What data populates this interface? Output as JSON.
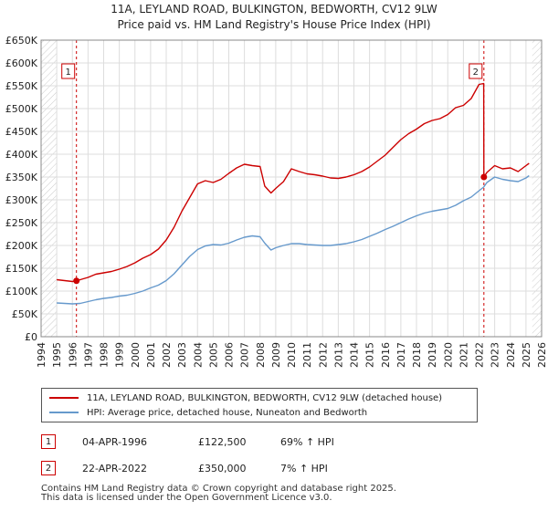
{
  "header": {
    "title_line1": "11A, LEYLAND ROAD, BULKINGTON, BEDWORTH, CV12 9LW",
    "title_line2": "Price paid vs. HM Land Registry's House Price Index (HPI)"
  },
  "colors": {
    "property_line": "#cc0000",
    "hpi_line": "#6699cc",
    "future_hatch": "#cccccc",
    "grid": "#dddddd",
    "marker": "#cc0000"
  },
  "legend": {
    "property_label": "11A, LEYLAND ROAD, BULKINGTON, BEDWORTH, CV12 9LW (detached house)",
    "hpi_label": "HPI: Average price, detached house, Nuneaton and Bedworth"
  },
  "transactions": [
    {
      "badge": "1",
      "date": "04-APR-1996",
      "price": "£122,500",
      "hpi_change": "69% ↑ HPI"
    },
    {
      "badge": "2",
      "date": "22-APR-2022",
      "price": "£350,000",
      "hpi_change": "7% ↑ HPI"
    }
  ],
  "footer": {
    "line1": "Contains HM Land Registry data © Crown copyright and database right 2025.",
    "line2": "This data is licensed under the Open Government Licence v3.0."
  },
  "chart_data": {
    "type": "line",
    "title": "11A, LEYLAND ROAD, BULKINGTON, BEDWORTH, CV12 9LW",
    "subtitle": "Price paid vs. HM Land Registry's House Price Index (HPI)",
    "xlabel": "",
    "ylabel": "",
    "xlim": [
      1994,
      2026
    ],
    "ylim": [
      0,
      650000
    ],
    "grid": true,
    "legend_position": "bottom",
    "x_ticks": [
      1994,
      1995,
      1996,
      1997,
      1998,
      1999,
      2000,
      2001,
      2002,
      2003,
      2004,
      2005,
      2006,
      2007,
      2008,
      2009,
      2010,
      2011,
      2012,
      2013,
      2014,
      2015,
      2016,
      2017,
      2018,
      2019,
      2020,
      2021,
      2022,
      2023,
      2024,
      2025,
      2026
    ],
    "y_ticks": [
      {
        "value": 0,
        "label": "£0"
      },
      {
        "value": 50000,
        "label": "£50K"
      },
      {
        "value": 100000,
        "label": "£100K"
      },
      {
        "value": 150000,
        "label": "£150K"
      },
      {
        "value": 200000,
        "label": "£200K"
      },
      {
        "value": 250000,
        "label": "£250K"
      },
      {
        "value": 300000,
        "label": "£300K"
      },
      {
        "value": 350000,
        "label": "£350K"
      },
      {
        "value": 400000,
        "label": "£400K"
      },
      {
        "value": 450000,
        "label": "£450K"
      },
      {
        "value": 500000,
        "label": "£500K"
      },
      {
        "value": 550000,
        "label": "£550K"
      },
      {
        "value": 600000,
        "label": "£600K"
      },
      {
        "value": 650000,
        "label": "£650K"
      }
    ],
    "hatched_ranges": [
      [
        1994,
        1995
      ],
      [
        2025.4,
        2026
      ]
    ],
    "series": [
      {
        "name": "11A, LEYLAND ROAD, BULKINGTON, BEDWORTH, CV12 9LW (detached house)",
        "x": [
          1995,
          1995.5,
          1996,
          1996.26,
          1996.5,
          1997,
          1997.5,
          1998,
          1998.5,
          1999,
          1999.5,
          2000,
          2000.5,
          2001,
          2001.5,
          2002,
          2002.5,
          2003,
          2003.5,
          2004,
          2004.5,
          2005,
          2005.5,
          2006,
          2006.5,
          2007,
          2007.5,
          2008,
          2008.3,
          2008.7,
          2009,
          2009.5,
          2010,
          2010.5,
          2011,
          2011.5,
          2012,
          2012.5,
          2013,
          2013.5,
          2014,
          2014.5,
          2015,
          2015.5,
          2016,
          2016.5,
          2017,
          2017.5,
          2018,
          2018.5,
          2019,
          2019.5,
          2020,
          2020.5,
          2021,
          2021.5,
          2022,
          2022.3,
          2022.31,
          2022.5,
          2023,
          2023.5,
          2024,
          2024.5,
          2025,
          2025.2
        ],
        "values": [
          125000,
          123000,
          121000,
          122500,
          125000,
          130000,
          137000,
          140000,
          143000,
          148000,
          154000,
          162000,
          172000,
          180000,
          192000,
          212000,
          240000,
          275000,
          305000,
          335000,
          342000,
          338000,
          345000,
          358000,
          370000,
          378000,
          375000,
          373000,
          330000,
          315000,
          325000,
          340000,
          368000,
          362000,
          357000,
          355000,
          352000,
          348000,
          347000,
          350000,
          355000,
          362000,
          372000,
          385000,
          398000,
          415000,
          432000,
          445000,
          455000,
          467000,
          474000,
          478000,
          487000,
          502000,
          507000,
          522000,
          553000,
          555000,
          350000,
          360000,
          375000,
          368000,
          370000,
          362000,
          375000,
          380000
        ]
      },
      {
        "name": "HPI: Average price, detached house, Nuneaton and Bedworth",
        "x": [
          1995,
          1995.5,
          1996,
          1996.5,
          1997,
          1997.5,
          1998,
          1998.5,
          1999,
          1999.5,
          2000,
          2000.5,
          2001,
          2001.5,
          2002,
          2002.5,
          2003,
          2003.5,
          2004,
          2004.5,
          2005,
          2005.5,
          2006,
          2006.5,
          2007,
          2007.5,
          2008,
          2008.3,
          2008.7,
          2009,
          2009.5,
          2010,
          2010.5,
          2011,
          2011.5,
          2012,
          2012.5,
          2013,
          2013.5,
          2014,
          2014.5,
          2015,
          2015.5,
          2016,
          2016.5,
          2017,
          2017.5,
          2018,
          2018.5,
          2019,
          2019.5,
          2020,
          2020.5,
          2021,
          2021.5,
          2022,
          2022.3,
          2022.5,
          2023,
          2023.5,
          2024,
          2024.5,
          2025,
          2025.2
        ],
        "values": [
          74000,
          73000,
          72000,
          73000,
          77000,
          81000,
          84000,
          86000,
          89000,
          91000,
          95000,
          100000,
          107000,
          113000,
          123000,
          138000,
          157000,
          176000,
          191000,
          199000,
          202000,
          201000,
          205000,
          212000,
          218000,
          221000,
          219000,
          205000,
          190000,
          195000,
          200000,
          204000,
          204000,
          202000,
          201000,
          200000,
          200000,
          202000,
          204000,
          208000,
          213000,
          220000,
          227000,
          235000,
          242000,
          250000,
          258000,
          265000,
          271000,
          275000,
          278000,
          281000,
          288000,
          298000,
          306000,
          320000,
          328000,
          338000,
          350000,
          345000,
          342000,
          340000,
          348000,
          353000
        ]
      }
    ],
    "annotations": [
      {
        "label": "1",
        "x": 1996.26,
        "y": 122500
      },
      {
        "label": "2",
        "x": 2022.31,
        "y": 350000
      }
    ]
  }
}
